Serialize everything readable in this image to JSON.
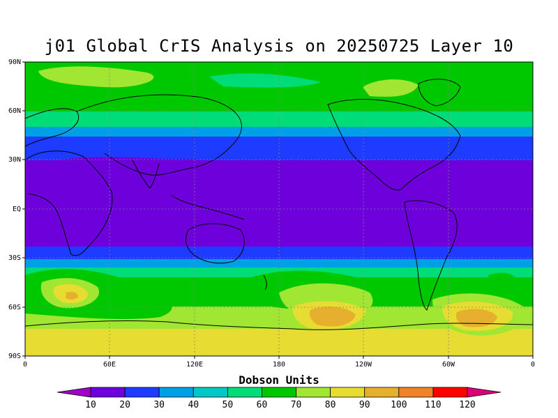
{
  "title": "j01 Global CrIS Analysis on 20250725 Layer 10",
  "lat_ticks": [
    "90N",
    "60N",
    "30N",
    "EQ",
    "30S",
    "60S",
    "90S"
  ],
  "lon_ticks": [
    "0",
    "60E",
    "120E",
    "180",
    "120W",
    "60W",
    "0"
  ],
  "colorbar": {
    "title": "Dobson Units",
    "labels": [
      "10",
      "20",
      "30",
      "40",
      "50",
      "60",
      "70",
      "80",
      "90",
      "100",
      "110",
      "120"
    ],
    "colors": [
      "#a000c8",
      "#6e00dc",
      "#1e3cff",
      "#00a0e6",
      "#00c8c8",
      "#00dc78",
      "#00c800",
      "#a0e632",
      "#e6dc32",
      "#e6af2d",
      "#f08228",
      "#ff0000",
      "#dc0078"
    ]
  }
}
